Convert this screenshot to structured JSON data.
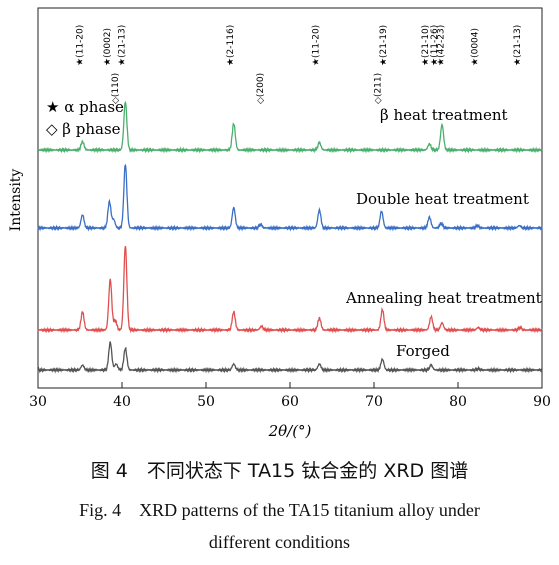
{
  "chart_data": {
    "type": "line",
    "xlabel": "2θ/(°)",
    "ylabel": "Intensity",
    "xlim": [
      30,
      90
    ],
    "xticks": [
      30,
      40,
      50,
      60,
      70,
      80,
      90
    ],
    "grid": false,
    "legend": {
      "placement": "top-left",
      "entries": [
        {
          "symbol": "★",
          "label": "α phase"
        },
        {
          "symbol": "◇",
          "label": "β phase"
        }
      ]
    },
    "peak_annotations": [
      {
        "x": 35.3,
        "symbol": "★",
        "label": "(11-20)",
        "row": "top"
      },
      {
        "x": 38.6,
        "symbol": "★",
        "label": "(0002)",
        "row": "top"
      },
      {
        "x": 39.5,
        "symbol": "◇",
        "label": "(110)",
        "row": "mid"
      },
      {
        "x": 40.3,
        "symbol": "★",
        "label": "(21-13)",
        "row": "top"
      },
      {
        "x": 53.2,
        "symbol": "★",
        "label": "(2-116)",
        "row": "top"
      },
      {
        "x": 56.8,
        "symbol": "◇",
        "label": "(200)",
        "row": "low"
      },
      {
        "x": 63.4,
        "symbol": "★",
        "label": "(11-20)",
        "row": "top"
      },
      {
        "x": 70.8,
        "symbol": "◇",
        "label": "(211)",
        "row": "low"
      },
      {
        "x": 71.4,
        "symbol": "★",
        "label": "(21-19)",
        "row": "top"
      },
      {
        "x": 76.4,
        "symbol": "★",
        "label": "(21-10)",
        "row": "top"
      },
      {
        "x": 77.5,
        "symbol": "★",
        "label": "(11-26)",
        "row": "top"
      },
      {
        "x": 78.3,
        "symbol": "★",
        "label": "(42-23)",
        "row": "top"
      },
      {
        "x": 82.3,
        "symbol": "★",
        "label": "(0004)",
        "row": "top"
      },
      {
        "x": 87.4,
        "symbol": "★",
        "label": "(21-13)",
        "row": "top"
      }
    ],
    "series": [
      {
        "name": "β heat treatment",
        "color": "#4caf6e",
        "peaks": [
          [
            35.3,
            0.07
          ],
          [
            40.4,
            0.4
          ],
          [
            53.3,
            0.22
          ],
          [
            63.5,
            0.06
          ],
          [
            76.6,
            0.05
          ],
          [
            78.1,
            0.21
          ]
        ]
      },
      {
        "name": "Double heat treatment",
        "color": "#3a6fc4",
        "peaks": [
          [
            35.3,
            0.11
          ],
          [
            38.5,
            0.22
          ],
          [
            39.0,
            0.07
          ],
          [
            40.4,
            0.53
          ],
          [
            53.3,
            0.17
          ],
          [
            56.5,
            0.03
          ],
          [
            63.5,
            0.15
          ],
          [
            70.9,
            0.14
          ],
          [
            76.6,
            0.09
          ],
          [
            78.0,
            0.04
          ],
          [
            82.3,
            0.02
          ],
          [
            87.3,
            0.02
          ]
        ]
      },
      {
        "name": "Annealing heat treatment",
        "color": "#e05050",
        "peaks": [
          [
            35.3,
            0.15
          ],
          [
            38.6,
            0.42
          ],
          [
            39.2,
            0.08
          ],
          [
            40.4,
            0.7
          ],
          [
            53.3,
            0.15
          ],
          [
            56.6,
            0.03
          ],
          [
            63.5,
            0.1
          ],
          [
            71.0,
            0.17
          ],
          [
            76.8,
            0.11
          ],
          [
            78.1,
            0.06
          ],
          [
            82.4,
            0.02
          ],
          [
            87.4,
            0.02
          ]
        ]
      },
      {
        "name": "Forged",
        "color": "#555555",
        "peaks": [
          [
            35.3,
            0.04
          ],
          [
            38.6,
            0.23
          ],
          [
            39.3,
            0.05
          ],
          [
            40.4,
            0.18
          ],
          [
            53.3,
            0.05
          ],
          [
            63.5,
            0.05
          ],
          [
            71.0,
            0.09
          ],
          [
            76.8,
            0.04
          ],
          [
            82.4,
            0.01
          ]
        ]
      }
    ]
  },
  "caption": {
    "zh": "图 4　不同状态下 TA15 钛合金的 XRD 图谱",
    "en_line1": "Fig. 4　XRD patterns of the TA15 titanium alloy under",
    "en_line2": "different conditions"
  }
}
